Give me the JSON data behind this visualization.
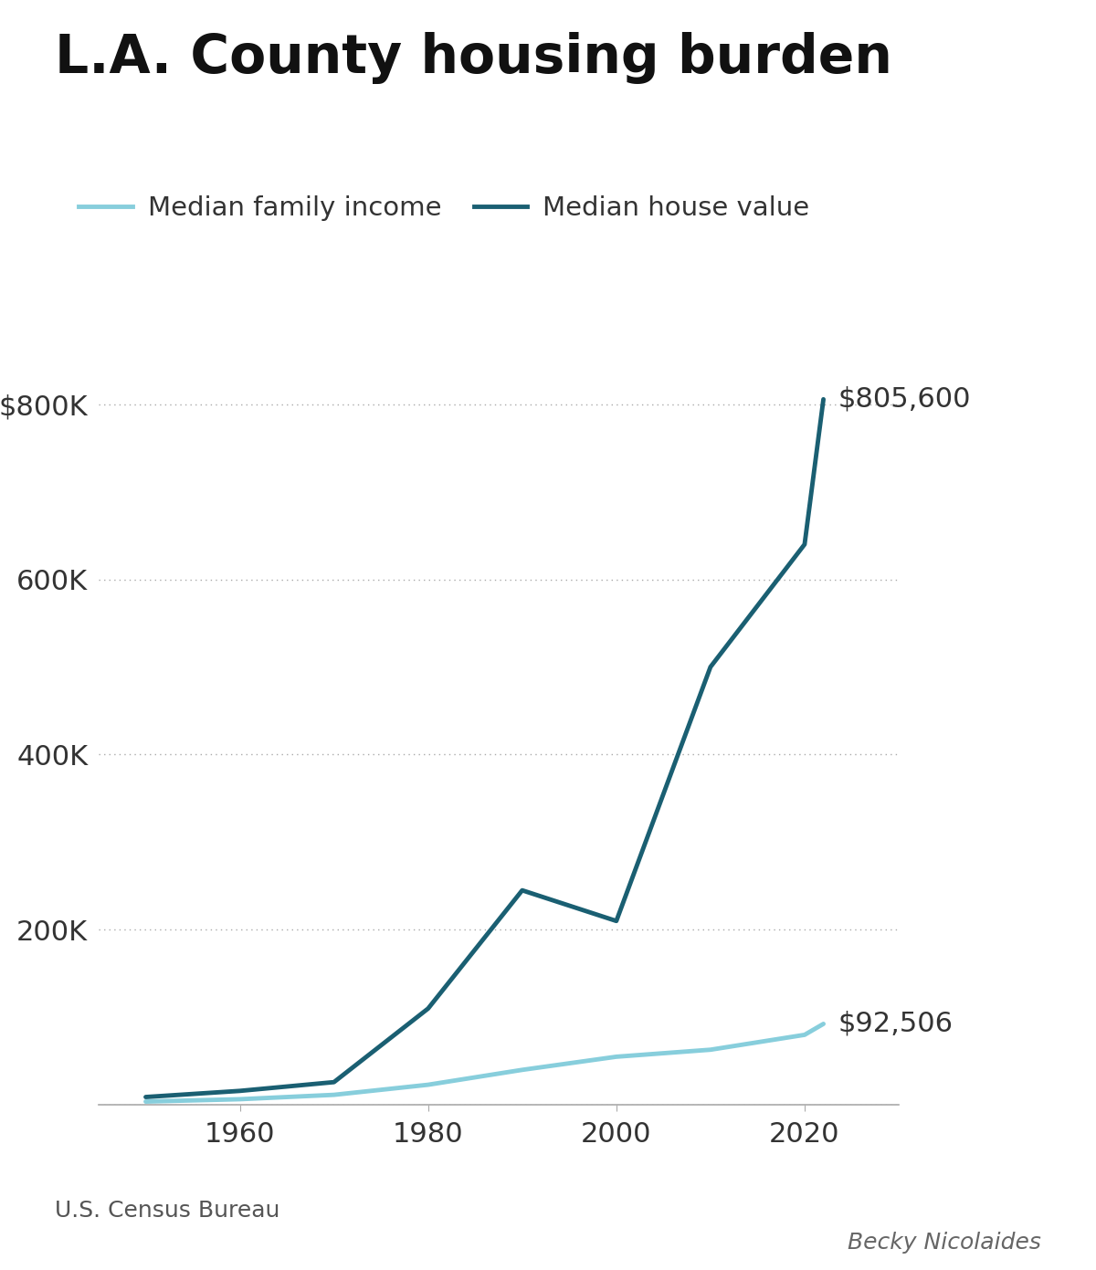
{
  "title": "L.A. County housing burden",
  "income_label": "Median family income",
  "house_label": "Median house value",
  "source": "U.S. Census Bureau",
  "credit": "Becky Nicolaides",
  "income_color": "#87CEDC",
  "house_color": "#1A5F72",
  "income_years": [
    1950,
    1960,
    1970,
    1980,
    1990,
    2000,
    2010,
    2020,
    2022
  ],
  "income_values": [
    3800,
    6500,
    11500,
    23000,
    40000,
    55000,
    63000,
    80000,
    92506
  ],
  "house_years": [
    1950,
    1960,
    1970,
    1980,
    1990,
    2000,
    2010,
    2020,
    2022
  ],
  "house_values": [
    9000,
    16000,
    26000,
    110000,
    245000,
    210000,
    500000,
    640000,
    805600
  ],
  "ylim": [
    0,
    870000
  ],
  "yticks": [
    0,
    200000,
    400000,
    600000,
    800000
  ],
  "ytick_labels": [
    "",
    "200K",
    "400K",
    "600K",
    "$800K"
  ],
  "xlim": [
    1945,
    2030
  ],
  "xticks": [
    1960,
    1980,
    2000,
    2020
  ],
  "end_label_house": "$805,600",
  "end_label_income": "$92,506",
  "background_color": "#ffffff",
  "grid_color": "#aaaaaa",
  "title_fontsize": 42,
  "legend_fontsize": 21,
  "tick_fontsize": 22,
  "annotation_fontsize": 22,
  "source_fontsize": 18,
  "line_width": 3.5
}
